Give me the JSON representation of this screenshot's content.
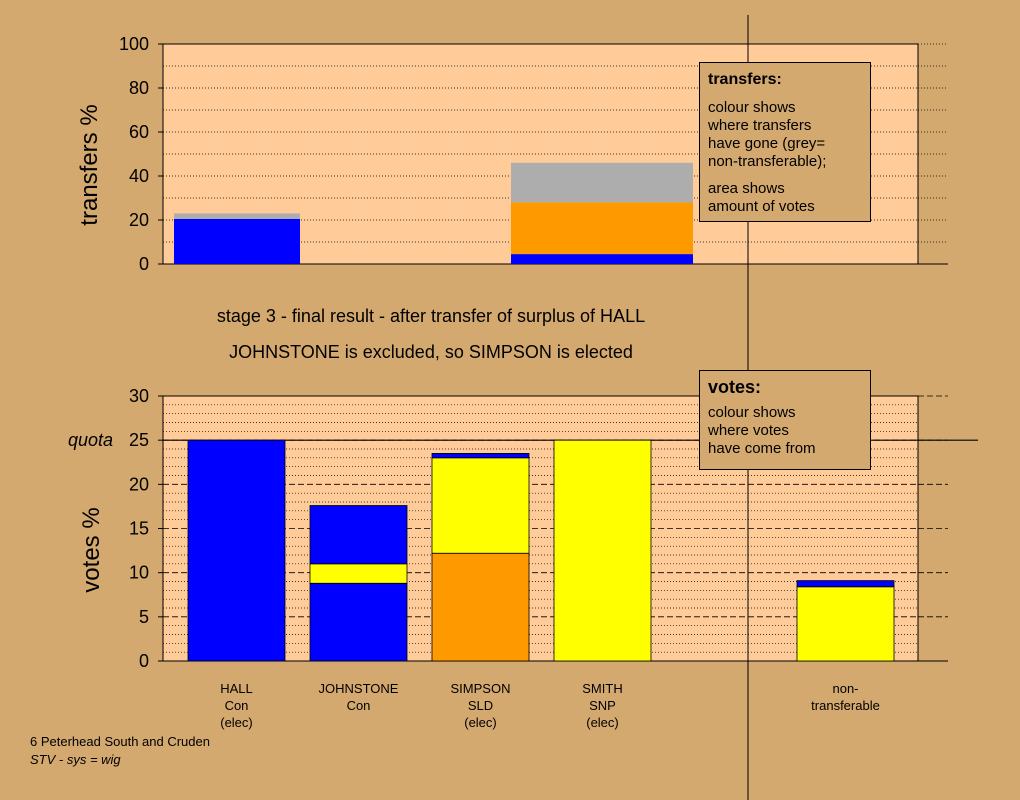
{
  "colors": {
    "background": "#D4A96F",
    "plot_area": "#FFCC99",
    "con_blue": "#0000FF",
    "snp_yellow": "#FFFF00",
    "sld_orange": "#FF9900",
    "nontransferable_grey": "#ADADAD"
  },
  "captions": {
    "line1": "stage 3 - final result - after transfer of surplus of HALL",
    "line2": "JOHNSTONE is excluded, so SIMPSON is elected"
  },
  "transfers_note": {
    "heading": "transfers:",
    "line1": "colour shows",
    "line2": "where transfers",
    "line3": "have gone (grey=",
    "line4": "non-transferable);",
    "line5": "area shows",
    "line6": "amount of votes"
  },
  "votes_note": {
    "heading": "votes:",
    "line1": "colour shows",
    "line2": "where votes",
    "line3": "have come from"
  },
  "footer": {
    "line1": "6 Peterhead South and Cruden",
    "line2": "STV - sys = wig"
  },
  "chart_data": [
    {
      "type": "bar",
      "stacked": true,
      "ylabel": "transfers %",
      "ylim": [
        0,
        100
      ],
      "yticks": [
        0,
        20,
        40,
        60,
        80,
        100
      ],
      "grid": "dotted",
      "bars": [
        {
          "segments": [
            {
              "color": "#0000FF",
              "value": 20.5
            },
            {
              "color": "#ADADAD",
              "value": 2.5
            }
          ]
        },
        {
          "segments": [
            {
              "color": "#0000FF",
              "value": 4.5
            },
            {
              "color": "#FF9900",
              "value": 23.5
            },
            {
              "color": "#ADADAD",
              "value": 18
            }
          ]
        }
      ]
    },
    {
      "type": "bar",
      "stacked": true,
      "ylabel": "votes %",
      "ylim": [
        0,
        30
      ],
      "yticks": [
        0,
        5,
        10,
        15,
        20,
        25,
        30
      ],
      "quota": {
        "label": "quota",
        "value": 25
      },
      "grid": "dashed",
      "categories": [
        {
          "lines": [
            "HALL",
            "Con",
            "(elec)"
          ]
        },
        {
          "lines": [
            "JOHNSTONE",
            "Con"
          ]
        },
        {
          "lines": [
            "SIMPSON",
            "SLD",
            "(elec)"
          ]
        },
        {
          "lines": [
            "SMITH",
            "SNP",
            "(elec)"
          ]
        },
        {
          "lines": [
            "non-",
            "transferable"
          ]
        }
      ],
      "stacks": [
        [
          {
            "color": "#0000FF",
            "value": 25
          }
        ],
        [
          {
            "color": "#0000FF",
            "value": 8.8
          },
          {
            "color": "#FFFF00",
            "value": 2.2
          },
          {
            "color": "#0000FF",
            "value": 6.6
          }
        ],
        [
          {
            "color": "#FF9900",
            "value": 12.2
          },
          {
            "color": "#FFFF00",
            "value": 10.8
          },
          {
            "color": "#0000FF",
            "value": 0.5
          }
        ],
        [
          {
            "color": "#FFFF00",
            "value": 25
          }
        ],
        [
          {
            "color": "#FFFF00",
            "value": 8.4
          },
          {
            "color": "#0000FF",
            "value": 0.7
          }
        ]
      ]
    }
  ]
}
